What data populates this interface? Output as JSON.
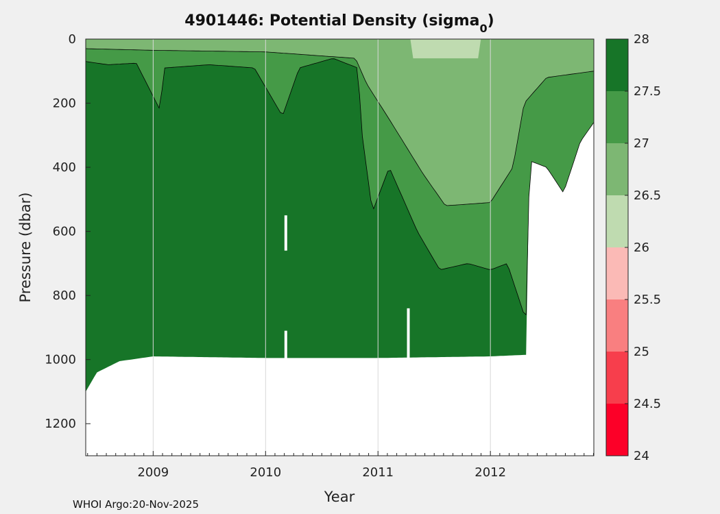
{
  "chart_data": {
    "type": "heatmap",
    "title": "4901446: Potential Density (sigma",
    "title_subscript": "0",
    "title_close": ")",
    "xlabel": "Year",
    "ylabel": "Pressure (dbar)",
    "xlim": [
      2008.4,
      2012.92
    ],
    "ylim": [
      1300,
      0
    ],
    "x_ticks": [
      {
        "value": 2009,
        "label": "2009"
      },
      {
        "value": 2010,
        "label": "2010"
      },
      {
        "value": 2011,
        "label": "2011"
      },
      {
        "value": 2012,
        "label": "2012"
      }
    ],
    "y_ticks": [
      {
        "value": 0,
        "label": "0"
      },
      {
        "value": 200,
        "label": "200"
      },
      {
        "value": 400,
        "label": "400"
      },
      {
        "value": 600,
        "label": "600"
      },
      {
        "value": 800,
        "label": "800"
      },
      {
        "value": 1000,
        "label": "1000"
      },
      {
        "value": 1200,
        "label": "1200"
      }
    ],
    "colorbar": {
      "range": [
        24,
        28
      ],
      "tick_labels": [
        "28",
        "27.5",
        "27",
        "26.5",
        "26",
        "25.5",
        "25",
        "24.5",
        "24"
      ],
      "levels": [
        {
          "from": 27.5,
          "to": 28.0,
          "color": "#177528"
        },
        {
          "from": 27.0,
          "to": 27.5,
          "color": "#459a47"
        },
        {
          "from": 26.5,
          "to": 27.0,
          "color": "#7db773"
        },
        {
          "from": 26.0,
          "to": 26.5,
          "color": "#bfdbb0"
        },
        {
          "from": 25.5,
          "to": 26.0,
          "color": "#fbbab6"
        },
        {
          "from": 25.0,
          "to": 25.5,
          "color": "#f97f80"
        },
        {
          "from": 24.5,
          "to": 25.0,
          "color": "#f73e4c"
        },
        {
          "from": 24.0,
          "to": 24.5,
          "color": "#fc0028"
        }
      ]
    },
    "data_depth_limit": [
      {
        "t": 2008.4,
        "p": 1100
      },
      {
        "t": 2008.5,
        "p": 1040
      },
      {
        "t": 2008.7,
        "p": 1005
      },
      {
        "t": 2009.0,
        "p": 990
      },
      {
        "t": 2010.0,
        "p": 995
      },
      {
        "t": 2011.0,
        "p": 995
      },
      {
        "t": 2012.0,
        "p": 990
      },
      {
        "t": 2012.32,
        "p": 985
      },
      {
        "t": 2012.33,
        "p": 680
      },
      {
        "t": 2012.35,
        "p": 380
      },
      {
        "t": 2012.5,
        "p": 400
      },
      {
        "t": 2012.65,
        "p": 480
      },
      {
        "t": 2012.8,
        "p": 320
      },
      {
        "t": 2012.92,
        "p": 260
      }
    ],
    "isopycnals": [
      {
        "sigma0": 27.5,
        "depth": [
          {
            "t": 2008.4,
            "p": 70
          },
          {
            "t": 2008.6,
            "p": 80
          },
          {
            "t": 2008.85,
            "p": 75
          },
          {
            "t": 2009.06,
            "p": 220
          },
          {
            "t": 2009.1,
            "p": 90
          },
          {
            "t": 2009.5,
            "p": 80
          },
          {
            "t": 2009.9,
            "p": 90
          },
          {
            "t": 2010.15,
            "p": 240
          },
          {
            "t": 2010.3,
            "p": 90
          },
          {
            "t": 2010.6,
            "p": 60
          },
          {
            "t": 2010.82,
            "p": 90
          },
          {
            "t": 2010.86,
            "p": 300
          },
          {
            "t": 2010.95,
            "p": 540
          },
          {
            "t": 2011.1,
            "p": 400
          },
          {
            "t": 2011.35,
            "p": 600
          },
          {
            "t": 2011.55,
            "p": 720
          },
          {
            "t": 2011.8,
            "p": 700
          },
          {
            "t": 2012.0,
            "p": 720
          },
          {
            "t": 2012.15,
            "p": 700
          },
          {
            "t": 2012.3,
            "p": 860
          }
        ]
      },
      {
        "sigma0": 27.0,
        "depth": [
          {
            "t": 2008.4,
            "p": 30
          },
          {
            "t": 2009.0,
            "p": 35
          },
          {
            "t": 2010.0,
            "p": 40
          },
          {
            "t": 2010.8,
            "p": 60
          },
          {
            "t": 2010.9,
            "p": 140
          },
          {
            "t": 2011.1,
            "p": 250
          },
          {
            "t": 2011.4,
            "p": 420
          },
          {
            "t": 2011.6,
            "p": 520
          },
          {
            "t": 2012.0,
            "p": 510
          },
          {
            "t": 2012.2,
            "p": 400
          },
          {
            "t": 2012.3,
            "p": 200
          },
          {
            "t": 2012.5,
            "p": 120
          },
          {
            "t": 2012.92,
            "p": 100
          }
        ]
      }
    ],
    "missing_gaps": [
      {
        "t": 2010.18,
        "p_from": 550,
        "p_to": 660
      },
      {
        "t": 2010.18,
        "p_from": 910,
        "p_to": 1000
      },
      {
        "t": 2011.27,
        "p_from": 840,
        "p_to": 1000
      }
    ]
  },
  "footer": {
    "text": "WHOI Argo:20-Nov-2025"
  }
}
